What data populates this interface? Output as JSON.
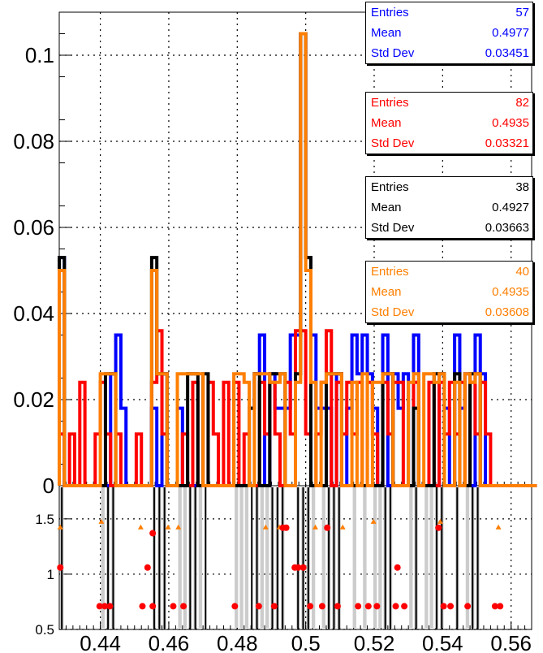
{
  "chart_data": [
    {
      "type": "histogram",
      "ylim": [
        0,
        0.11
      ],
      "xlim": [
        0.428,
        0.566
      ],
      "yticks": [
        "0",
        "0.02",
        "0.04",
        "0.06",
        "0.08",
        "0.1"
      ],
      "grid": true,
      "bin_start": 0.428,
      "bin_width": 0.0015,
      "series": [
        {
          "color": "#0000ff",
          "values": [
            0.053,
            0,
            0,
            0,
            0,
            0,
            0,
            0,
            0,
            0,
            0.026,
            0.035,
            0.018,
            0,
            0,
            0,
            0,
            0,
            0.018,
            0,
            0.026,
            0,
            0,
            0.018,
            0,
            0,
            0,
            0,
            0,
            0,
            0,
            0,
            0,
            0,
            0,
            0,
            0,
            0.018,
            0.026,
            0.035,
            0,
            0.026,
            0.018,
            0.018,
            0.018,
            0.035,
            0.035,
            0.105,
            0.053,
            0.035,
            0.018,
            0.018,
            0.018,
            0,
            0.026,
            0,
            0.018,
            0.035,
            0.026,
            0.035,
            0.026,
            0.018,
            0,
            0.035,
            0,
            0.026,
            0.018,
            0.026,
            0,
            0.035,
            0,
            0,
            0,
            0,
            0.026,
            0.018,
            0,
            0.035,
            0.018,
            0.026,
            0,
            0.035,
            0.026,
            0,
            0,
            0,
            0,
            0,
            0,
            0,
            0,
            0,
            0
          ]
        },
        {
          "color": "#ff0000",
          "values": [
            0.012,
            0,
            0.012,
            0,
            0.024,
            0,
            0,
            0.012,
            0.024,
            0.012,
            0,
            0.012,
            0,
            0,
            0,
            0.012,
            0,
            0,
            0.024,
            0.036,
            0.012,
            0,
            0,
            0,
            0.012,
            0,
            0.024,
            0,
            0,
            0.024,
            0.012,
            0,
            0.024,
            0,
            0.024,
            0,
            0.012,
            0,
            0,
            0.024,
            0.012,
            0.024,
            0.012,
            0,
            0.024,
            0.012,
            0.036,
            0.036,
            0.012,
            0,
            0.012,
            0.024,
            0.036,
            0,
            0.024,
            0.012,
            0.024,
            0.012,
            0.024,
            0,
            0.024,
            0.012,
            0,
            0.024,
            0.012,
            0.024,
            0.024,
            0,
            0,
            0.024,
            0,
            0,
            0.024,
            0,
            0.024,
            0.012,
            0.024,
            0.012,
            0.024,
            0,
            0.024,
            0.012,
            0.024,
            0.012,
            0,
            0,
            0,
            0,
            0,
            0,
            0,
            0,
            0
          ]
        },
        {
          "color": "#000000",
          "values": [
            0.053,
            0,
            0,
            0,
            0,
            0,
            0,
            0,
            0,
            0.026,
            0.026,
            0,
            0,
            0,
            0,
            0,
            0,
            0,
            0.053,
            0.026,
            0.026,
            0,
            0,
            0,
            0,
            0.026,
            0.026,
            0,
            0.026,
            0,
            0,
            0,
            0,
            0,
            0,
            0,
            0,
            0.018,
            0.026,
            0,
            0,
            0.026,
            0.026,
            0.026,
            0,
            0,
            0.026,
            0.105,
            0.053,
            0,
            0,
            0,
            0.026,
            0.026,
            0.026,
            0,
            0,
            0,
            0,
            0,
            0,
            0,
            0,
            0.026,
            0.026,
            0,
            0,
            0,
            0,
            0.018,
            0,
            0,
            0,
            0.026,
            0.026,
            0,
            0,
            0.026,
            0,
            0,
            0.026,
            0.026,
            0,
            0,
            0,
            0,
            0,
            0,
            0,
            0,
            0,
            0,
            0
          ]
        },
        {
          "color": "#ff7f00",
          "values": [
            0.05,
            0,
            0,
            0,
            0,
            0,
            0,
            0,
            0.026,
            0.026,
            0.026,
            0,
            0,
            0,
            0,
            0,
            0,
            0,
            0.05,
            0.026,
            0.026,
            0,
            0,
            0.026,
            0.026,
            0.026,
            0.026,
            0.026,
            0,
            0,
            0,
            0,
            0,
            0,
            0.026,
            0.026,
            0.024,
            0,
            0.026,
            0.026,
            0.026,
            0.024,
            0.024,
            0.026,
            0,
            0,
            0.024,
            0.105,
            0.05,
            0.024,
            0,
            0.024,
            0.026,
            0.026,
            0.026,
            0,
            0,
            0.024,
            0,
            0.026,
            0,
            0.024,
            0.024,
            0.026,
            0.026,
            0,
            0,
            0,
            0.024,
            0.026,
            0,
            0.026,
            0.026,
            0.024,
            0.026,
            0,
            0,
            0.024,
            0,
            0.026,
            0.024,
            0.026,
            0,
            0,
            0,
            0,
            0,
            0,
            0,
            0,
            0,
            0,
            0
          ]
        }
      ],
      "stats": [
        {
          "color": "#0000ff",
          "rows": [
            [
              "Entries",
              "57"
            ],
            [
              "Mean",
              "0.4977"
            ],
            [
              "Std Dev",
              "0.03451"
            ]
          ]
        },
        {
          "color": "#ff0000",
          "rows": [
            [
              "Entries",
              "82"
            ],
            [
              "Mean",
              "0.4935"
            ],
            [
              "Std Dev",
              "0.03321"
            ]
          ]
        },
        {
          "color": "#000000",
          "rows": [
            [
              "Entries",
              "38"
            ],
            [
              "Mean",
              "0.4927"
            ],
            [
              "Std Dev",
              "0.03663"
            ]
          ]
        },
        {
          "color": "#ff7f00",
          "rows": [
            [
              "Entries",
              "40"
            ],
            [
              "Mean",
              "0.4935"
            ],
            [
              "Std Dev",
              "0.03608"
            ]
          ]
        }
      ]
    },
    {
      "type": "scatter",
      "ylim": [
        0.5,
        1.8
      ],
      "xlim": [
        0.428,
        0.566
      ],
      "xticks": [
        "0.44",
        "0.46",
        "0.48",
        "0.5",
        "0.52",
        "0.54",
        "0.56"
      ],
      "yticks": [
        "0.5",
        "1",
        "1.5"
      ],
      "grid": true,
      "ratio_points": [
        {
          "x": 0.4283,
          "y": 1.06,
          "color": "#ff0000"
        },
        {
          "x": 0.4283,
          "y": 1.42,
          "color": "#ff7f00"
        },
        {
          "x": 0.4398,
          "y": 0.71,
          "color": "#ff0000"
        },
        {
          "x": 0.4403,
          "y": 1.47,
          "color": "#ff7f00"
        },
        {
          "x": 0.4413,
          "y": 0.71,
          "color": "#ff0000"
        },
        {
          "x": 0.4428,
          "y": 0.71,
          "color": "#ff0000"
        },
        {
          "x": 0.4518,
          "y": 1.42,
          "color": "#ff7f00"
        },
        {
          "x": 0.4523,
          "y": 0.71,
          "color": "#ff0000"
        },
        {
          "x": 0.4538,
          "y": 1.06,
          "color": "#ff0000"
        },
        {
          "x": 0.4553,
          "y": 0.71,
          "color": "#ff0000"
        },
        {
          "x": 0.4553,
          "y": 1.37,
          "color": "#ff0000"
        },
        {
          "x": 0.4598,
          "y": 1.42,
          "color": "#ff7f00"
        },
        {
          "x": 0.4613,
          "y": 0.71,
          "color": "#ff0000"
        },
        {
          "x": 0.4628,
          "y": 1.42,
          "color": "#ff7f00"
        },
        {
          "x": 0.4643,
          "y": 0.71,
          "color": "#ff0000"
        },
        {
          "x": 0.4793,
          "y": 0.71,
          "color": "#ff0000"
        },
        {
          "x": 0.4863,
          "y": 0.71,
          "color": "#ff0000"
        },
        {
          "x": 0.4883,
          "y": 1.42,
          "color": "#ff7f00"
        },
        {
          "x": 0.4908,
          "y": 0.71,
          "color": "#ff0000"
        },
        {
          "x": 0.4923,
          "y": 1.42,
          "color": "#ff7f00"
        },
        {
          "x": 0.4933,
          "y": 1.42,
          "color": "#ff0000"
        },
        {
          "x": 0.4943,
          "y": 1.42,
          "color": "#ff0000"
        },
        {
          "x": 0.4968,
          "y": 1.06,
          "color": "#ff0000"
        },
        {
          "x": 0.4978,
          "y": 1.06,
          "color": "#ff0000"
        },
        {
          "x": 0.4993,
          "y": 1.06,
          "color": "#ff0000"
        },
        {
          "x": 0.5013,
          "y": 0.71,
          "color": "#ff0000"
        },
        {
          "x": 0.5028,
          "y": 1.42,
          "color": "#ff7f00"
        },
        {
          "x": 0.5048,
          "y": 0.71,
          "color": "#ff0000"
        },
        {
          "x": 0.5063,
          "y": 1.42,
          "color": "#ff0000"
        },
        {
          "x": 0.5093,
          "y": 0.71,
          "color": "#ff0000"
        },
        {
          "x": 0.5108,
          "y": 1.42,
          "color": "#ff7f00"
        },
        {
          "x": 0.5153,
          "y": 0.71,
          "color": "#ff0000"
        },
        {
          "x": 0.5183,
          "y": 0.71,
          "color": "#ff0000"
        },
        {
          "x": 0.5198,
          "y": 1.47,
          "color": "#ff7f00"
        },
        {
          "x": 0.5208,
          "y": 0.71,
          "color": "#ff0000"
        },
        {
          "x": 0.5263,
          "y": 0.71,
          "color": "#ff0000"
        },
        {
          "x": 0.5268,
          "y": 1.06,
          "color": "#ff0000"
        },
        {
          "x": 0.5288,
          "y": 0.71,
          "color": "#ff0000"
        },
        {
          "x": 0.5388,
          "y": 1.42,
          "color": "#ff0000"
        },
        {
          "x": 0.5393,
          "y": 1.47,
          "color": "#ff7f00"
        },
        {
          "x": 0.5403,
          "y": 0.71,
          "color": "#ff0000"
        },
        {
          "x": 0.5423,
          "y": 0.71,
          "color": "#ff0000"
        },
        {
          "x": 0.5473,
          "y": 0.71,
          "color": "#ff0000"
        },
        {
          "x": 0.5553,
          "y": 0.71,
          "color": "#ff0000"
        },
        {
          "x": 0.5563,
          "y": 1.42,
          "color": "#ff7f00"
        },
        {
          "x": 0.5568,
          "y": 0.71,
          "color": "#ff0000"
        }
      ]
    }
  ]
}
